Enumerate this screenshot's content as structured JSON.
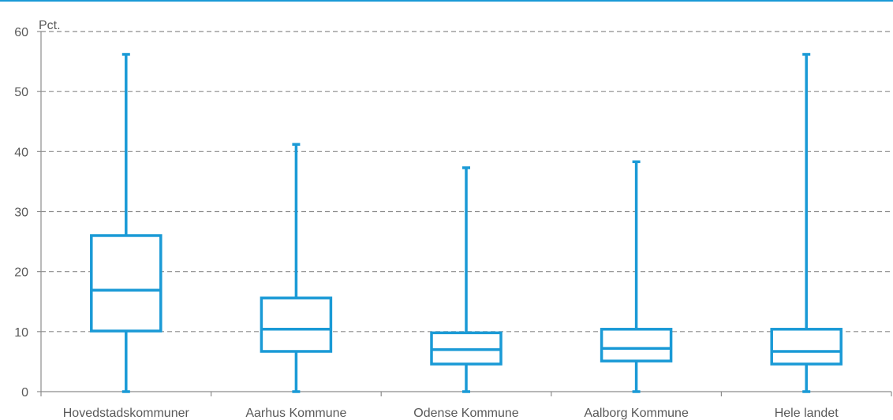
{
  "chart_data": {
    "type": "boxplot",
    "unit": "Pct.",
    "ylim": [
      0,
      60
    ],
    "yticks": [
      "0",
      "10",
      "20",
      "30",
      "40",
      "50",
      "60"
    ],
    "grid": true,
    "categories": [
      "Hovedstadskommuner",
      "Aarhus Kommune",
      "Odense Kommune",
      "Aalborg Kommune",
      "Hele landet"
    ],
    "boxes": [
      {
        "min": 0,
        "q1": 10.1,
        "median": 16.9,
        "q3": 26.0,
        "max": 56.2
      },
      {
        "min": 0,
        "q1": 6.7,
        "median": 10.4,
        "q3": 15.6,
        "max": 41.2
      },
      {
        "min": 0,
        "q1": 4.6,
        "median": 7.0,
        "q3": 9.8,
        "max": 37.3
      },
      {
        "min": 0,
        "q1": 5.1,
        "median": 7.2,
        "q3": 10.4,
        "max": 38.3
      },
      {
        "min": 0,
        "q1": 4.6,
        "median": 6.7,
        "q3": 10.4,
        "max": 56.2
      }
    ],
    "colors": {
      "box": "#1a9ad6",
      "grid": "#8c8c8c",
      "axis": "#8c8c8c",
      "text": "#595959",
      "top_rule": "#1a9ad6"
    }
  }
}
